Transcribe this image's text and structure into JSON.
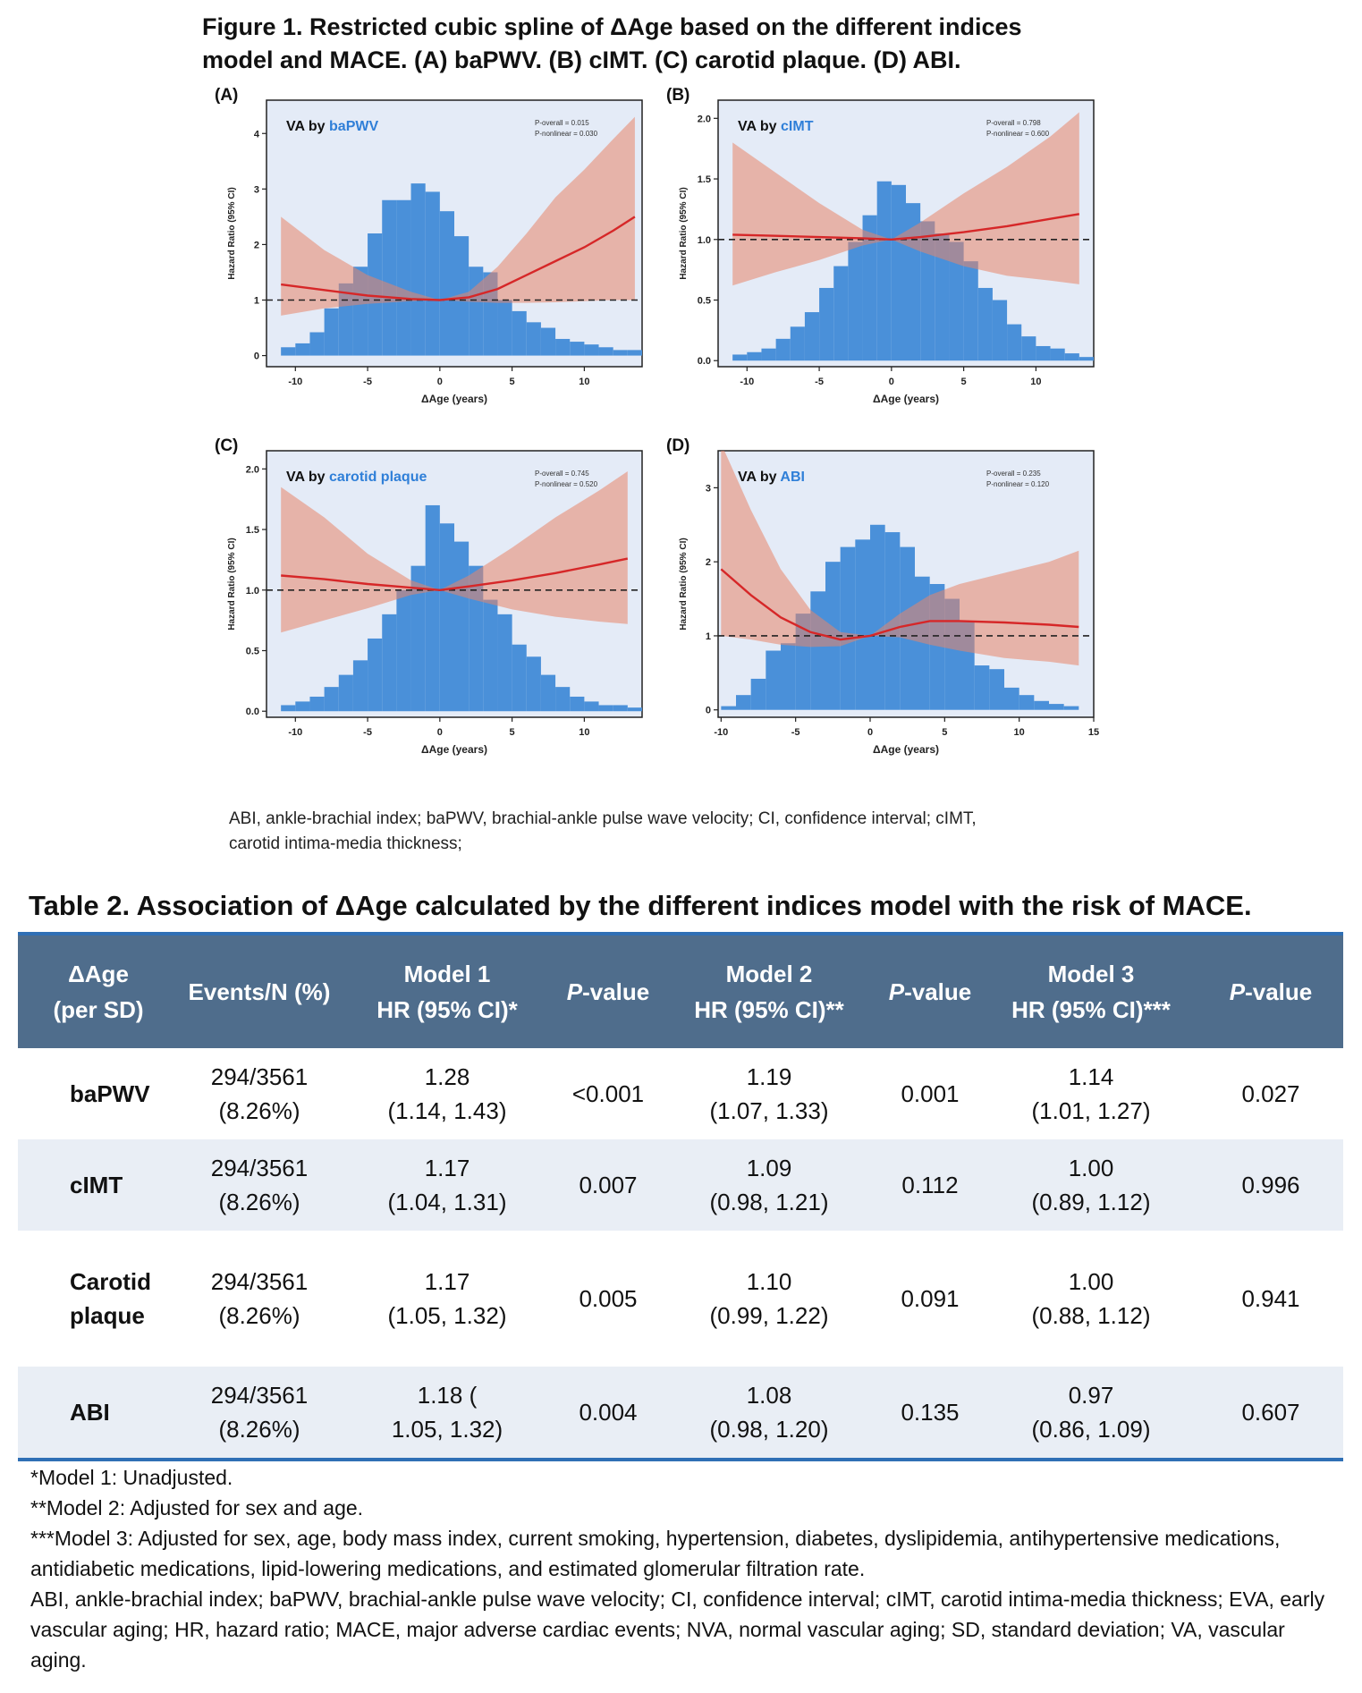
{
  "figure": {
    "title_line1": "Figure 1. Restricted cubic spline of ΔAge based on the different indices",
    "title_line2": "model and MACE. (A) baPWV. (B) cIMT. (C) carotid plaque. (D) ABI.",
    "note_line1": "ABI, ankle-brachial index; baPWV, brachial-ankle pulse wave velocity; CI, confidence interval; cIMT,",
    "note_line2": "carotid intima-media thickness;"
  },
  "colors": {
    "hist": "#4a90d9",
    "ci_band": "#e8856a",
    "curve": "#d62728",
    "plot_bg": "#e4ebf7",
    "header_bg": "#4f6d8c",
    "rule": "#2f6fb5",
    "va_index": "#2f7fd8"
  },
  "chart_data": [
    {
      "type": "line",
      "panel": "(A)",
      "label_prefix": "VA by",
      "index_name": "baPWV",
      "p_overall": "P-overall = 0.015",
      "p_nonlinear": "P-nonlinear = 0.030",
      "xlabel": "ΔAge (years)",
      "ylabel": "Hazard Ratio (95% CI)",
      "xlim": [
        -12,
        14
      ],
      "ylim": [
        -0.2,
        4.6
      ],
      "xticks": [
        -10,
        -5,
        0,
        5,
        10
      ],
      "yticks": [
        0,
        1,
        2,
        3,
        4
      ],
      "ytick_labels": [
        "0",
        "1",
        "2",
        "3",
        "4"
      ],
      "reference": 1.0,
      "hist_bin_start": -11,
      "hist_bin_width": 1,
      "hist_heights": [
        0.15,
        0.22,
        0.42,
        0.85,
        1.3,
        1.6,
        2.2,
        2.8,
        2.8,
        3.1,
        2.95,
        2.6,
        2.15,
        1.6,
        1.5,
        1.0,
        0.8,
        0.6,
        0.5,
        0.3,
        0.25,
        0.2,
        0.15,
        0.1,
        0.1
      ],
      "curve_x": [
        -11,
        -8,
        -5,
        -2,
        0,
        2,
        4,
        6,
        8,
        10,
        12,
        13.5
      ],
      "curve_y": [
        1.28,
        1.18,
        1.08,
        1.02,
        1.0,
        1.05,
        1.2,
        1.45,
        1.7,
        1.95,
        2.25,
        2.5
      ],
      "ci_lower": [
        0.72,
        0.85,
        0.93,
        0.98,
        1.0,
        0.97,
        0.95,
        0.95,
        0.96,
        0.98,
        1.0,
        1.0
      ],
      "ci_upper": [
        2.5,
        1.9,
        1.45,
        1.15,
        1.0,
        1.15,
        1.6,
        2.2,
        2.85,
        3.35,
        3.9,
        4.3
      ]
    },
    {
      "type": "line",
      "panel": "(B)",
      "label_prefix": "VA by",
      "index_name": "cIMT",
      "p_overall": "P-overall = 0.798",
      "p_nonlinear": "P-nonlinear = 0.600",
      "xlabel": "ΔAge (years)",
      "ylabel": "Hazard Ratio (95% CI)",
      "xlim": [
        -12,
        14
      ],
      "ylim": [
        -0.05,
        2.15
      ],
      "xticks": [
        -10,
        -5,
        0,
        5,
        10
      ],
      "yticks": [
        0,
        0.5,
        1.0,
        1.5,
        2.0
      ],
      "ytick_labels": [
        "0.0",
        "0.5",
        "1.0",
        "1.5",
        "2.0"
      ],
      "reference": 1.0,
      "hist_bin_start": -11,
      "hist_bin_width": 1,
      "hist_heights": [
        0.05,
        0.07,
        0.1,
        0.18,
        0.28,
        0.4,
        0.6,
        0.78,
        0.98,
        1.2,
        1.48,
        1.45,
        1.3,
        1.15,
        1.05,
        0.98,
        0.82,
        0.6,
        0.5,
        0.3,
        0.2,
        0.12,
        0.1,
        0.06,
        0.03
      ],
      "curve_x": [
        -11,
        -8,
        -5,
        -2,
        0,
        2,
        5,
        8,
        11,
        13
      ],
      "curve_y": [
        1.04,
        1.03,
        1.02,
        1.01,
        1.0,
        1.02,
        1.06,
        1.11,
        1.17,
        1.21
      ],
      "ci_lower": [
        0.62,
        0.73,
        0.83,
        0.95,
        1.0,
        0.9,
        0.78,
        0.7,
        0.66,
        0.63
      ],
      "ci_upper": [
        1.8,
        1.55,
        1.3,
        1.08,
        1.0,
        1.14,
        1.38,
        1.6,
        1.85,
        2.05
      ]
    },
    {
      "type": "line",
      "panel": "(C)",
      "label_prefix": "VA by",
      "index_name": "carotid plaque",
      "p_overall": "P-overall = 0.745",
      "p_nonlinear": "P-nonlinear = 0.520",
      "xlabel": "ΔAge (years)",
      "ylabel": "Hazard Ratio (95% CI)",
      "xlim": [
        -12,
        14
      ],
      "ylim": [
        -0.05,
        2.15
      ],
      "xticks": [
        -10,
        -5,
        0,
        5,
        10
      ],
      "yticks": [
        0,
        0.5,
        1.0,
        1.5,
        2.0
      ],
      "ytick_labels": [
        "0.0",
        "0.5",
        "1.0",
        "1.5",
        "2.0"
      ],
      "reference": 1.0,
      "hist_bin_start": -11,
      "hist_bin_width": 1,
      "hist_heights": [
        0.05,
        0.08,
        0.12,
        0.2,
        0.3,
        0.42,
        0.6,
        0.8,
        1.0,
        1.2,
        1.7,
        1.55,
        1.4,
        1.2,
        0.92,
        0.8,
        0.55,
        0.45,
        0.3,
        0.2,
        0.12,
        0.08,
        0.05,
        0.05,
        0.03
      ],
      "curve_x": [
        -11,
        -8,
        -5,
        -2,
        0,
        2,
        5,
        8,
        11,
        13
      ],
      "curve_y": [
        1.12,
        1.09,
        1.05,
        1.02,
        1.0,
        1.03,
        1.08,
        1.14,
        1.21,
        1.26
      ],
      "ci_lower": [
        0.65,
        0.75,
        0.85,
        0.96,
        1.0,
        0.93,
        0.84,
        0.78,
        0.74,
        0.72
      ],
      "ci_upper": [
        1.85,
        1.6,
        1.3,
        1.08,
        1.0,
        1.12,
        1.35,
        1.6,
        1.82,
        1.98
      ]
    },
    {
      "type": "line",
      "panel": "(D)",
      "label_prefix": "VA by",
      "index_name": "ABI",
      "p_overall": "P-overall = 0.235",
      "p_nonlinear": "P-nonlinear = 0.120",
      "xlabel": "ΔAge (years)",
      "ylabel": "Hazard Ratio (95% CI)",
      "xlim": [
        -10.2,
        15
      ],
      "ylim": [
        -0.1,
        3.5
      ],
      "xticks": [
        -10,
        -5,
        0,
        5,
        10,
        15
      ],
      "yticks": [
        0,
        1,
        2,
        3
      ],
      "ytick_labels": [
        "0",
        "1",
        "2",
        "3"
      ],
      "reference": 1.0,
      "hist_bin_start": -10,
      "hist_bin_width": 1,
      "hist_heights": [
        0.05,
        0.2,
        0.42,
        0.8,
        0.9,
        1.3,
        1.6,
        2.0,
        2.2,
        2.3,
        2.5,
        2.4,
        2.2,
        1.8,
        1.7,
        1.5,
        1.2,
        0.6,
        0.55,
        0.3,
        0.2,
        0.12,
        0.08,
        0.05
      ],
      "curve_x": [
        -10,
        -8,
        -6,
        -4,
        -2,
        0,
        2,
        4,
        6,
        9,
        12,
        14
      ],
      "curve_y": [
        1.9,
        1.55,
        1.25,
        1.05,
        0.95,
        1.0,
        1.12,
        1.2,
        1.2,
        1.18,
        1.15,
        1.12
      ],
      "ci_lower": [
        1.0,
        0.95,
        0.88,
        0.85,
        0.86,
        1.0,
        0.98,
        0.88,
        0.8,
        0.7,
        0.65,
        0.6
      ],
      "ci_upper": [
        3.6,
        2.7,
        1.9,
        1.35,
        1.05,
        1.0,
        1.3,
        1.55,
        1.7,
        1.85,
        2.0,
        2.15
      ]
    }
  ],
  "table": {
    "title": "Table 2. Association of ΔAge calculated by the different indices model with the risk of MACE.",
    "headers": {
      "col1_line1": "ΔAge",
      "col1_line2": "(per SD)",
      "col2": "Events/N (%)",
      "m1_line1": "Model 1",
      "m1_line2": "HR (95% CI)*",
      "p_italic": "P",
      "p_suffix": "-value",
      "m2_line1": "Model 2",
      "m2_line2": "HR (95% CI)**",
      "m3_line1": "Model 3",
      "m3_line2": "HR (95% CI)***"
    },
    "rows": [
      {
        "name_line1": "baPWV",
        "name_line2": "",
        "events": "294/3561",
        "pct": "(8.26%)",
        "m1_hr": "1.28",
        "m1_ci": "(1.14, 1.43)",
        "m1_p": "<0.001",
        "m2_hr": "1.19",
        "m2_ci": "(1.07, 1.33)",
        "m2_p": "0.001",
        "m3_hr": "1.14",
        "m3_ci": "(1.01, 1.27)",
        "m3_p": "0.027"
      },
      {
        "name_line1": "cIMT",
        "name_line2": "",
        "events": "294/3561",
        "pct": "(8.26%)",
        "m1_hr": "1.17",
        "m1_ci": "(1.04, 1.31)",
        "m1_p": "0.007",
        "m2_hr": "1.09",
        "m2_ci": "(0.98, 1.21)",
        "m2_p": "0.112",
        "m3_hr": "1.00",
        "m3_ci": "(0.89, 1.12)",
        "m3_p": "0.996"
      },
      {
        "name_line1": "Carotid",
        "name_line2": "plaque",
        "events": "294/3561",
        "pct": "(8.26%)",
        "m1_hr": "1.17",
        "m1_ci": "(1.05, 1.32)",
        "m1_p": "0.005",
        "m2_hr": "1.10",
        "m2_ci": "(0.99, 1.22)",
        "m2_p": "0.091",
        "m3_hr": "1.00",
        "m3_ci": "(0.88, 1.12)",
        "m3_p": "0.941"
      },
      {
        "name_line1": "ABI",
        "name_line2": "",
        "events": "294/3561",
        "pct": "(8.26%)",
        "m1_hr": "1.18 (",
        "m1_ci": "1.05, 1.32)",
        "m1_p": "0.004",
        "m2_hr": "1.08",
        "m2_ci": "(0.98, 1.20)",
        "m2_p": "0.135",
        "m3_hr": "0.97",
        "m3_ci": "(0.86, 1.09)",
        "m3_p": "0.607"
      }
    ],
    "notes": {
      "n1": "*Model 1: Unadjusted.",
      "n2": "**Model 2: Adjusted for sex and age.",
      "n3": "***Model 3: Adjusted for sex, age, body mass index, current smoking, hypertension, diabetes, dyslipidemia, antihypertensive medications, antidiabetic medications, lipid-lowering medications, and estimated glomerular filtration rate.",
      "n4": "ABI, ankle-brachial index; baPWV, brachial-ankle pulse wave velocity; CI, confidence interval; cIMT, carotid intima-media thickness; EVA, early vascular aging; HR, hazard ratio; MACE, major adverse cardiac events; NVA, normal vascular aging; SD, standard deviation; VA, vascular aging."
    }
  }
}
